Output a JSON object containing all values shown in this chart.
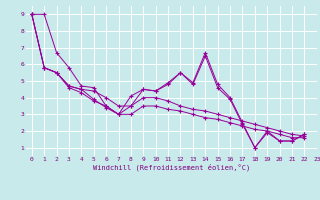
{
  "title": "",
  "xlabel": "Windchill (Refroidissement éolien,°C)",
  "background_color": "#c8eaea",
  "grid_color": "#ffffff",
  "line_color": "#990099",
  "xlim": [
    -0.5,
    23
  ],
  "ylim": [
    0.5,
    9.5
  ],
  "xticks": [
    0,
    1,
    2,
    3,
    4,
    5,
    6,
    7,
    8,
    9,
    10,
    11,
    12,
    13,
    14,
    15,
    16,
    17,
    18,
    19,
    20,
    21,
    22,
    23
  ],
  "yticks": [
    1,
    2,
    3,
    4,
    5,
    6,
    7,
    8,
    9
  ],
  "lines": [
    {
      "x": [
        0,
        1,
        2,
        3,
        4,
        5,
        6,
        7,
        8,
        9,
        10,
        11,
        12,
        13,
        14,
        15,
        16,
        17,
        18,
        19,
        20,
        21,
        22
      ],
      "y": [
        9.0,
        9.0,
        6.7,
        5.8,
        4.7,
        4.6,
        3.5,
        3.0,
        4.1,
        4.5,
        4.4,
        4.9,
        5.5,
        4.9,
        6.7,
        4.8,
        4.0,
        2.5,
        1.0,
        2.0,
        1.4,
        1.4,
        1.8
      ]
    },
    {
      "x": [
        0,
        1,
        2,
        3,
        4,
        5,
        6,
        7,
        8,
        9,
        10,
        11,
        12,
        13,
        14,
        15,
        16,
        17,
        18,
        19,
        20,
        21,
        22
      ],
      "y": [
        9.0,
        5.8,
        5.5,
        4.7,
        4.5,
        4.4,
        4.0,
        3.5,
        3.5,
        4.0,
        4.0,
        3.8,
        3.5,
        3.3,
        3.2,
        3.0,
        2.8,
        2.6,
        2.4,
        2.2,
        2.0,
        1.8,
        1.7
      ]
    },
    {
      "x": [
        0,
        1,
        2,
        3,
        4,
        5,
        6,
        7,
        8,
        9,
        10,
        11,
        12,
        13,
        14,
        15,
        16,
        17,
        18,
        19,
        20,
        21,
        22
      ],
      "y": [
        9.0,
        5.8,
        5.5,
        4.6,
        4.3,
        3.8,
        3.5,
        3.0,
        3.0,
        3.5,
        3.5,
        3.3,
        3.2,
        3.0,
        2.8,
        2.7,
        2.5,
        2.3,
        2.1,
        2.0,
        1.8,
        1.6,
        1.6
      ]
    },
    {
      "x": [
        0,
        1,
        2,
        3,
        4,
        5,
        6,
        7,
        8,
        9,
        10,
        11,
        12,
        13,
        14,
        15,
        16,
        17,
        18,
        19,
        20,
        21,
        22
      ],
      "y": [
        9.0,
        5.8,
        5.5,
        4.7,
        4.5,
        3.9,
        3.4,
        3.0,
        3.5,
        4.5,
        4.4,
        4.8,
        5.5,
        4.8,
        6.5,
        4.6,
        3.9,
        2.4,
        1.0,
        1.9,
        1.4,
        1.4,
        1.8
      ]
    }
  ]
}
